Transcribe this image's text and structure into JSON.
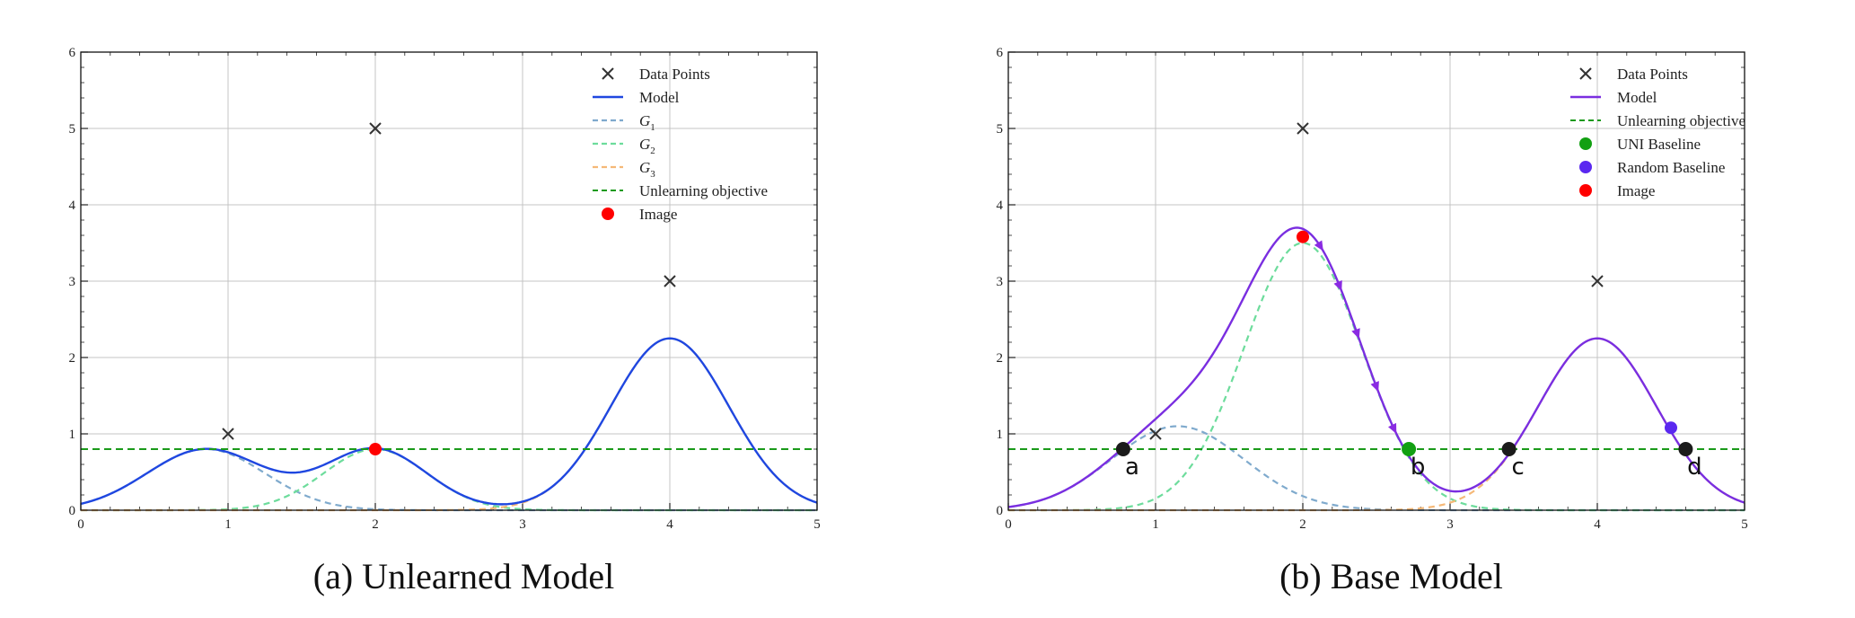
{
  "panels": [
    {
      "id": "a",
      "caption": "(a) Unlearned Model"
    },
    {
      "id": "b",
      "caption": "(b) Base Model"
    }
  ],
  "colors": {
    "data_points": "#333333",
    "model_a": "#1f47e0",
    "model_b": "#7a2ee0",
    "g1": "#7faacd",
    "g2": "#6ddc9c",
    "g3": "#f5b877",
    "unlearning": "#1a9a1a",
    "image": "#ff0000",
    "uni_baseline": "#12a012",
    "random_baseline": "#5a28f0",
    "annotation_point": "#1b1b1b",
    "trajectory": "#8a2be2",
    "grid": "#c4c4c4"
  },
  "chart_data": [
    {
      "type": "line",
      "xlim": [
        0,
        5
      ],
      "ylim": [
        0,
        6
      ],
      "xticks": [
        "0",
        "1",
        "2",
        "3",
        "4",
        "5"
      ],
      "yticks": [
        "0",
        "1",
        "2",
        "3",
        "4",
        "5",
        "6"
      ],
      "grid": true,
      "legend_position": "top-right",
      "legend": [
        "Data Points",
        "Model",
        "G_1",
        "G_2",
        "G_3",
        "Unlearning objective",
        "Image"
      ],
      "data_points": {
        "x": [
          1,
          2,
          4
        ],
        "y": [
          1,
          5,
          3
        ]
      },
      "gaussians": [
        {
          "name": "G_1",
          "amplitude": 0.8,
          "mean": 0.85,
          "sigma": 0.4
        },
        {
          "name": "G_2",
          "amplitude": 0.8,
          "mean": 2.0,
          "sigma": 0.35
        },
        {
          "name": "G_3",
          "amplitude": 2.25,
          "mean": 4.0,
          "sigma": 0.4
        }
      ],
      "unlearning_objective": 0.8,
      "image_point": {
        "x": 2.0,
        "y": 0.8
      }
    },
    {
      "type": "line",
      "xlim": [
        0,
        5
      ],
      "ylim": [
        0,
        6
      ],
      "xticks": [
        "0",
        "1",
        "2",
        "3",
        "4",
        "5"
      ],
      "yticks": [
        "0",
        "1",
        "2",
        "3",
        "4",
        "5",
        "6"
      ],
      "grid": true,
      "legend_position": "top-right",
      "legend": [
        "Data Points",
        "Model",
        "Unlearning objective",
        "UNI Baseline",
        "Random Baseline",
        "Image"
      ],
      "data_points": {
        "x": [
          1,
          2,
          4
        ],
        "y": [
          1,
          5,
          3
        ]
      },
      "gaussians": [
        {
          "amplitude": 1.1,
          "mean": 1.15,
          "sigma": 0.45
        },
        {
          "amplitude": 3.5,
          "mean": 2.0,
          "sigma": 0.4
        },
        {
          "amplitude": 2.25,
          "mean": 4.0,
          "sigma": 0.4
        }
      ],
      "unlearning_objective": 0.8,
      "image_point": {
        "x": 2.0,
        "y": 3.58
      },
      "uni_baseline_point": {
        "x": 2.72,
        "y": 0.8
      },
      "random_baseline_point": {
        "x": 4.5,
        "y": 1.08
      },
      "annotated_points": [
        {
          "label": "a",
          "x": 0.78,
          "y": 0.8
        },
        {
          "label": "b",
          "x": 2.72,
          "y": 0.8
        },
        {
          "label": "c",
          "x": 3.4,
          "y": 0.8
        },
        {
          "label": "d",
          "x": 4.6,
          "y": 0.8
        }
      ],
      "trajectory_arrows_x": [
        2.12,
        2.25,
        2.37,
        2.5,
        2.62
      ]
    }
  ]
}
